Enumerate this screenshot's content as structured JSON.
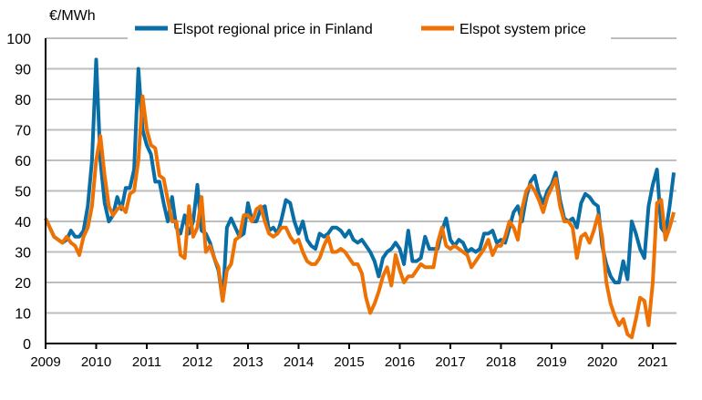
{
  "chart_data": {
    "type": "line",
    "ylabel": "€/MWh",
    "ylim": [
      0,
      100
    ],
    "yticks": [
      "0",
      "10",
      "20",
      "30",
      "40",
      "50",
      "60",
      "70",
      "80",
      "90",
      "100"
    ],
    "xticks": [
      "2009",
      "2010",
      "2011",
      "2012",
      "2013",
      "2014",
      "2015",
      "2016",
      "2017",
      "2018",
      "2019",
      "2020",
      "2021"
    ],
    "x_start": "2009-01",
    "x_frequency": "monthly",
    "grid": "horizontal",
    "legend_position": "top",
    "series": [
      {
        "name": "Elspot regional price in Finland",
        "color": "#0a6ea6",
        "values": [
          41,
          38,
          35,
          34,
          33,
          34,
          37,
          35,
          35,
          37,
          45,
          60,
          93,
          60,
          46,
          40,
          42,
          48,
          44,
          51,
          51,
          57,
          90,
          70,
          65,
          62,
          53,
          53,
          46,
          40,
          48,
          38,
          36,
          42,
          36,
          40,
          52,
          37,
          36,
          33,
          28,
          24,
          14,
          38,
          41,
          38,
          35,
          36,
          46,
          40,
          40,
          44,
          45,
          37,
          38,
          36,
          41,
          47,
          46,
          40,
          36,
          40,
          34,
          32,
          31,
          36,
          35,
          36,
          38,
          38,
          37,
          35,
          37,
          34,
          33,
          34,
          32,
          30,
          27,
          22,
          28,
          30,
          31,
          33,
          31,
          26,
          37,
          27,
          27,
          28,
          35,
          31,
          31,
          31,
          37,
          41,
          34,
          32,
          34,
          33,
          30,
          31,
          30,
          31,
          36,
          36,
          37,
          33,
          34,
          33,
          38,
          43,
          45,
          40,
          48,
          53,
          55,
          49,
          46,
          50,
          52,
          56,
          47,
          41,
          40,
          41,
          38,
          46,
          49,
          48,
          46,
          45,
          32,
          26,
          22,
          20,
          20,
          27,
          21,
          40,
          36,
          31,
          28,
          45,
          52,
          57,
          38,
          36,
          45,
          56
        ]
      },
      {
        "name": "Elspot system price",
        "color": "#ee7203",
        "values": [
          41,
          38,
          35,
          34,
          33,
          35,
          33,
          32,
          29,
          35,
          38,
          45,
          60,
          68,
          55,
          45,
          42,
          44,
          45,
          43,
          49,
          50,
          60,
          81,
          70,
          65,
          64,
          55,
          54,
          47,
          40,
          40,
          29,
          28,
          45,
          35,
          38,
          48,
          30,
          32,
          28,
          25,
          14,
          24,
          26,
          34,
          35,
          42,
          42,
          40,
          44,
          45,
          40,
          36,
          35,
          36,
          38,
          38,
          35,
          33,
          34,
          30,
          27,
          26,
          26,
          28,
          32,
          35,
          30,
          30,
          31,
          30,
          28,
          26,
          26,
          23,
          15,
          10,
          13,
          17,
          22,
          25,
          19,
          29,
          24,
          20,
          22,
          22,
          24,
          26,
          25,
          25,
          25,
          33,
          38,
          32,
          31,
          32,
          31,
          30,
          29,
          25,
          27,
          29,
          31,
          34,
          29,
          32,
          32,
          35,
          40,
          38,
          34,
          44,
          50,
          52,
          50,
          47,
          43,
          48,
          51,
          54,
          45,
          40,
          40,
          38,
          28,
          35,
          36,
          33,
          37,
          42,
          35,
          20,
          13,
          9,
          6,
          8,
          3,
          2,
          8,
          15,
          14,
          6,
          20,
          46,
          47,
          34,
          38,
          43
        ]
      }
    ]
  }
}
